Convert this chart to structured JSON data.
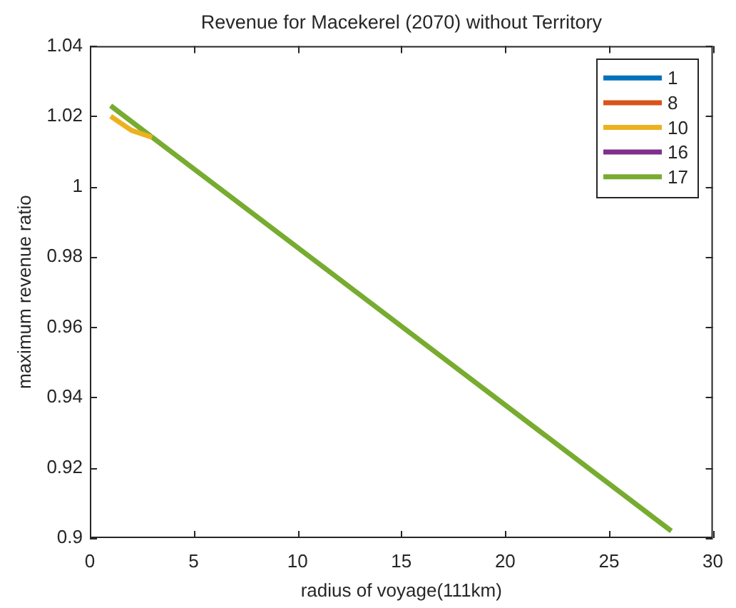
{
  "chart_data": {
    "type": "line",
    "title": "Revenue for Macekerel (2070) without Territory",
    "xlabel": "radius of voyage(111km)",
    "ylabel": "maximum revenue ratio",
    "xlim": [
      0,
      30
    ],
    "xticks": [
      0,
      5,
      10,
      15,
      20,
      25,
      30
    ],
    "ylim": [
      0.9,
      1.04
    ],
    "yticks": [
      0.9,
      0.92,
      0.94,
      0.96,
      0.98,
      1,
      1.02,
      1.04
    ],
    "legend": "top right",
    "series": [
      {
        "name": "1",
        "color": "#0072bd"
      },
      {
        "name": "8",
        "color": "#d95319"
      },
      {
        "name": "10",
        "color": "#edb120",
        "x": [
          1,
          2,
          3
        ],
        "values": [
          1.02,
          1.016,
          1.014
        ]
      },
      {
        "name": "16",
        "color": "#7e2f8e"
      },
      {
        "name": "17",
        "color": "#77ac30",
        "x": [
          1,
          28
        ],
        "values": [
          1.023,
          0.902
        ]
      }
    ]
  }
}
